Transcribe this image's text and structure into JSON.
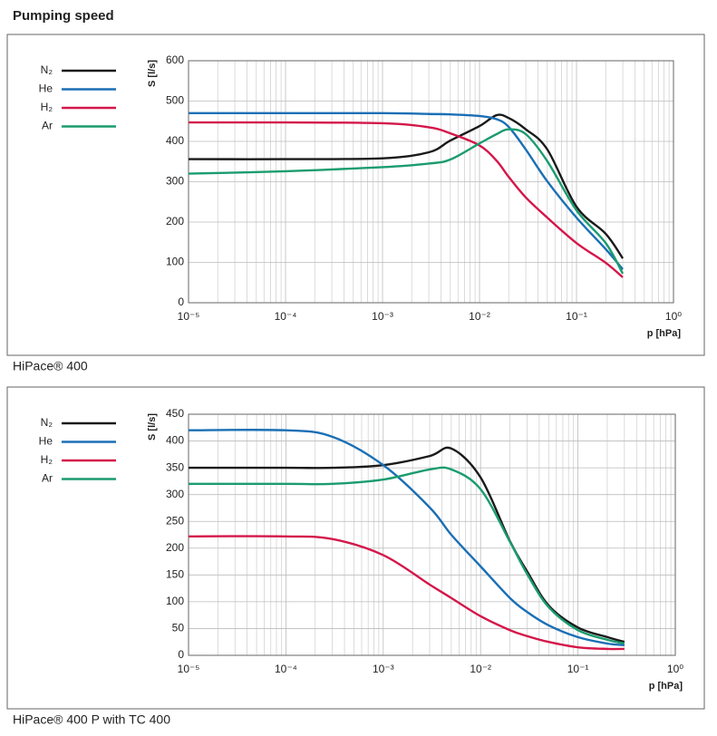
{
  "title": "Pumping speed",
  "chart_data": [
    {
      "type": "line",
      "caption": "HiPace® 400",
      "ylabel": "S [l/s]",
      "xlabel": "p [hPa]",
      "xscale": "log",
      "grid": true,
      "legend": "left",
      "xlim": [
        1e-05,
        1
      ],
      "ylim": [
        0,
        600
      ],
      "xticks": [
        {
          "value": 1e-05,
          "label": "10⁻⁵"
        },
        {
          "value": 0.0001,
          "label": "10⁻⁴"
        },
        {
          "value": 0.001,
          "label": "10⁻³"
        },
        {
          "value": 0.01,
          "label": "10⁻²"
        },
        {
          "value": 0.1,
          "label": "10⁻¹"
        },
        {
          "value": 1,
          "label": "10⁰"
        }
      ],
      "yticks": [
        0,
        100,
        200,
        300,
        400,
        500,
        600
      ],
      "x": [
        1e-05,
        0.0001,
        0.001,
        0.003,
        0.005,
        0.01,
        0.015,
        0.02,
        0.03,
        0.05,
        0.1,
        0.2,
        0.3
      ],
      "series": [
        {
          "name": "N₂",
          "color": "#1a1a1a",
          "values": [
            356,
            356,
            358,
            373,
            402,
            438,
            465,
            458,
            430,
            380,
            238,
            171,
            110
          ]
        },
        {
          "name": "He",
          "color": "#1a6fb5",
          "values": [
            470,
            470,
            470,
            468,
            467,
            463,
            455,
            436,
            380,
            301,
            211,
            133,
            83
          ]
        },
        {
          "name": "H₂",
          "color": "#d4174a",
          "values": [
            447,
            447,
            445,
            435,
            420,
            390,
            352,
            312,
            261,
            211,
            148,
            99,
            63
          ]
        },
        {
          "name": "Ar",
          "color": "#1a9c6e",
          "values": [
            320,
            326,
            336,
            345,
            355,
            395,
            418,
            430,
            418,
            351,
            229,
            148,
            72
          ]
        }
      ]
    },
    {
      "type": "line",
      "caption": "HiPace® 400 P with TC 400",
      "ylabel": "S [l/s]",
      "xlabel": "p [hPa]",
      "xscale": "log",
      "grid": true,
      "legend": "left",
      "xlim": [
        1e-05,
        1
      ],
      "ylim": [
        0,
        450
      ],
      "xticks": [
        {
          "value": 1e-05,
          "label": "10⁻⁵"
        },
        {
          "value": 0.0001,
          "label": "10⁻⁴"
        },
        {
          "value": 0.001,
          "label": "10⁻³"
        },
        {
          "value": 0.01,
          "label": "10⁻²"
        },
        {
          "value": 0.1,
          "label": "10⁻¹"
        },
        {
          "value": 1,
          "label": "10⁰"
        }
      ],
      "yticks": [
        0,
        50,
        100,
        150,
        200,
        250,
        300,
        350,
        400,
        450
      ],
      "x": [
        1e-05,
        0.0001,
        0.0003,
        0.001,
        0.003,
        0.005,
        0.01,
        0.02,
        0.03,
        0.05,
        0.1,
        0.2,
        0.3
      ],
      "series": [
        {
          "name": "N₂",
          "color": "#1a1a1a",
          "values": [
            350,
            350,
            350,
            355,
            372,
            386,
            332,
            213,
            157,
            93,
            52,
            34,
            25
          ]
        },
        {
          "name": "He",
          "color": "#1a6fb5",
          "values": [
            420,
            420,
            408,
            355,
            276,
            225,
            166,
            107,
            81,
            56,
            34,
            22,
            19
          ]
        },
        {
          "name": "H₂",
          "color": "#d4174a",
          "values": [
            222,
            222,
            217,
            187,
            132,
            107,
            73,
            47,
            36,
            25,
            15,
            12,
            12
          ]
        },
        {
          "name": "Ar",
          "color": "#1a9c6e",
          "values": [
            320,
            320,
            320,
            328,
            347,
            347,
            310,
            212,
            152,
            90,
            47,
            29,
            22
          ]
        }
      ]
    }
  ]
}
